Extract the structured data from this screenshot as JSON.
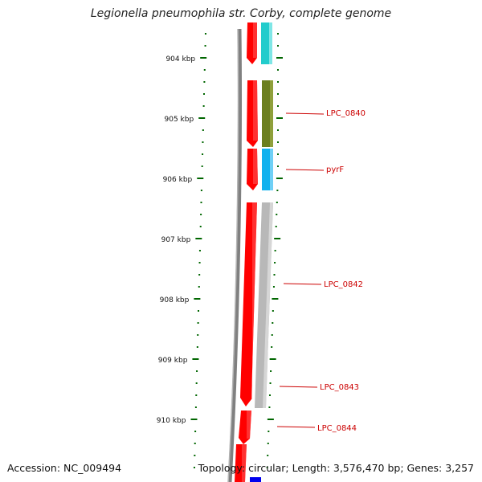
{
  "title": "Legionella pneumophila str. Corby, complete genome",
  "footer": {
    "accession": "Accession: NC_009494",
    "topology": "Topology: circular; Length: 3,576,470 bp; Genes: 3,257"
  },
  "colors": {
    "forward_strand": "#ff0000",
    "backbone": "#808080",
    "ruler": "#006600",
    "label": "#cc0000",
    "cyan_feature": "#22cccc",
    "olive_feature": "#6b7f1f",
    "blue_feature": "#11b1ee",
    "gray_feature": "#b8b8b8",
    "dark_blue_feature": "#0000ee"
  },
  "ruler": {
    "labels": [
      "904 kbp",
      "905 kbp",
      "906 kbp",
      "907 kbp",
      "908 kbp",
      "909 kbp",
      "910 kbp"
    ]
  },
  "features": [
    {
      "name": "LPC_0840",
      "color_key": "olive_feature"
    },
    {
      "name": "pyrF",
      "color_key": "blue_feature"
    },
    {
      "name": "LPC_0842",
      "color_key": "gray_feature"
    },
    {
      "name": "LPC_0843",
      "color_key": "gray_feature"
    },
    {
      "name": "LPC_0844",
      "color_key": "forward_strand"
    }
  ]
}
